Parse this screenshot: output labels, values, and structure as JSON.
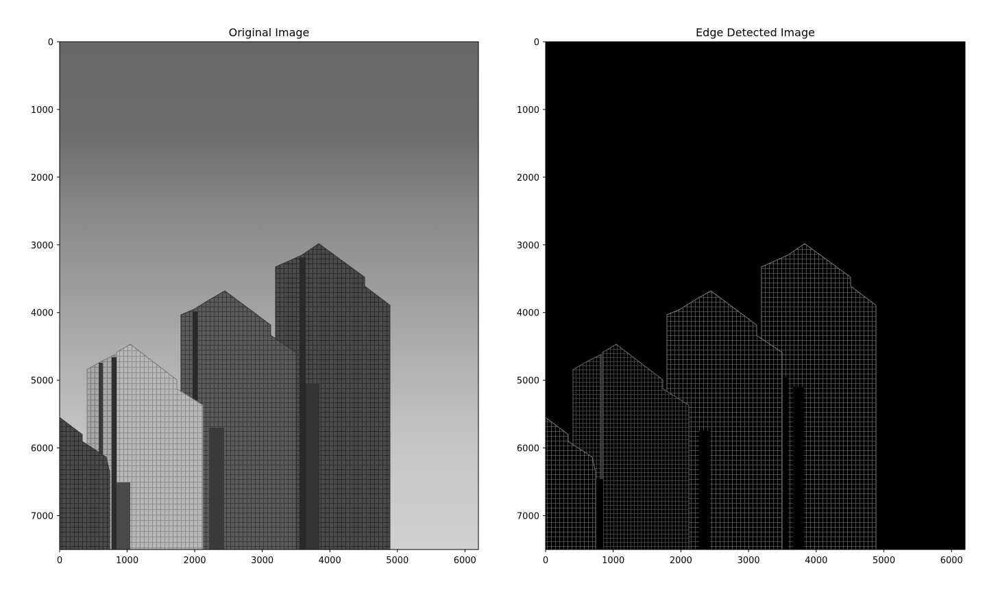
{
  "chart_data": [
    {
      "type": "image",
      "title": "Original Image",
      "xlim": [
        0,
        6200
      ],
      "ylim": [
        7500,
        0
      ],
      "xticks": [
        0,
        1000,
        2000,
        3000,
        4000,
        5000,
        6000
      ],
      "yticks": [
        0,
        1000,
        2000,
        3000,
        4000,
        5000,
        6000,
        7000
      ],
      "xlabel": "",
      "ylabel": "",
      "colormap": "gray"
    },
    {
      "type": "image",
      "title": "Edge Detected Image",
      "xlim": [
        0,
        6200
      ],
      "ylim": [
        7500,
        0
      ],
      "xticks": [
        0,
        1000,
        2000,
        3000,
        4000,
        5000,
        6000
      ],
      "yticks": [
        0,
        1000,
        2000,
        3000,
        4000,
        5000,
        6000,
        7000
      ],
      "xlabel": "",
      "ylabel": "",
      "colormap": "gray"
    }
  ]
}
